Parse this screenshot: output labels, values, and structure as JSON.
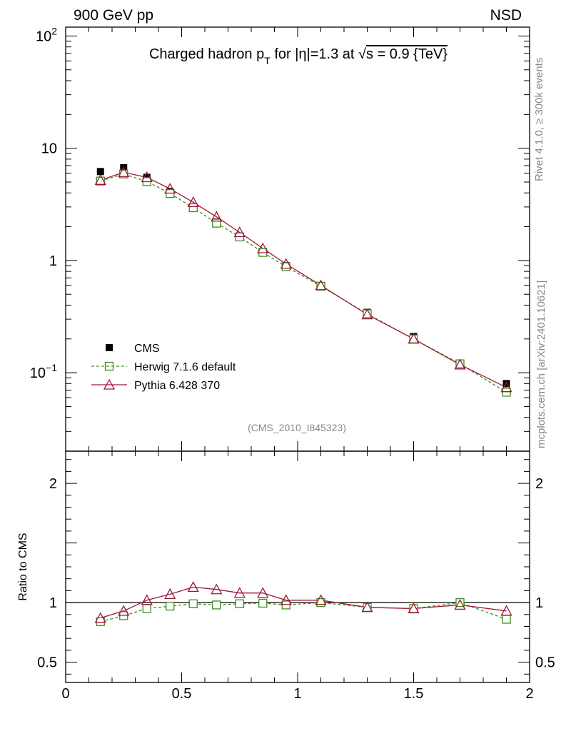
{
  "header": {
    "left": "900 GeV pp",
    "right": "NSD"
  },
  "side_labels": {
    "rivet": "Rivet 4.1.0, ≥ 300k events",
    "mcplots": "mcplots.cern.ch [arXiv:2401.10621]"
  },
  "chart_data": {
    "type": "scatter",
    "title": "Charged hadron p_T for |η|=1.3 at √s = 0.9 {TeV}",
    "title_parts": {
      "a": "Charged hadron p",
      "sub": "T",
      "b": " for |η|=1.3 at ",
      "root": "√",
      "c": "s = 0.9 {TeV}"
    },
    "analysis_id": "(CMS_2010_I845323)",
    "xlim": [
      0,
      2
    ],
    "main": {
      "yscale": "log",
      "ylim": [
        0.02,
        120
      ],
      "ytick_labels": [
        {
          "value": 100,
          "base": "10",
          "exp": "2"
        },
        {
          "value": 10,
          "base": "10",
          "exp": ""
        },
        {
          "value": 1,
          "base": "1",
          "exp": ""
        },
        {
          "value": 0.1,
          "base": "10",
          "exp": "−1"
        }
      ]
    },
    "ratio": {
      "ylabel": "Ratio to CMS",
      "ylim": [
        0.33,
        2.27
      ],
      "ytick_labels": [
        "2",
        "1",
        "0.5"
      ],
      "ytick_values": [
        2,
        1,
        0.5
      ],
      "reference_line": 1
    },
    "x": [
      0.15,
      0.25,
      0.35,
      0.45,
      0.55,
      0.65,
      0.75,
      0.85,
      0.95,
      1.1,
      1.3,
      1.5,
      1.7,
      1.9
    ],
    "xtick_labels": [
      "0",
      "0.5",
      "1",
      "1.5",
      "2"
    ],
    "xtick_values": [
      0,
      0.5,
      1,
      1.5,
      2
    ],
    "series": [
      {
        "name": "CMS",
        "style": "data",
        "color": "#000000",
        "values": [
          6.2,
          6.7,
          5.5,
          4.1,
          3.0,
          2.2,
          1.65,
          1.2,
          0.9,
          0.59,
          0.345,
          0.21,
          0.12,
          0.08
        ]
      },
      {
        "name": "Herwig 7.1.6 default",
        "style": "dashed-square",
        "color": "#3a8f1c",
        "values": [
          5.1,
          5.9,
          5.05,
          3.95,
          2.95,
          2.15,
          1.62,
          1.18,
          0.88,
          0.59,
          0.335,
          0.2,
          0.12,
          0.067
        ],
        "ratio": [
          0.84,
          0.89,
          0.95,
          0.97,
          0.99,
          0.98,
          0.99,
          0.995,
          0.98,
          1.0,
          0.96,
          0.95,
          1.0,
          0.86
        ]
      },
      {
        "name": "Pythia 6.428 370",
        "style": "solid-triangle",
        "color": "#a0163a",
        "values": [
          5.2,
          6.1,
          5.5,
          4.35,
          3.3,
          2.45,
          1.78,
          1.28,
          0.93,
          0.6,
          0.33,
          0.2,
          0.118,
          0.074
        ],
        "ratio": [
          0.87,
          0.93,
          1.02,
          1.07,
          1.13,
          1.11,
          1.08,
          1.08,
          1.02,
          1.02,
          0.96,
          0.95,
          0.98,
          0.93
        ]
      }
    ]
  }
}
